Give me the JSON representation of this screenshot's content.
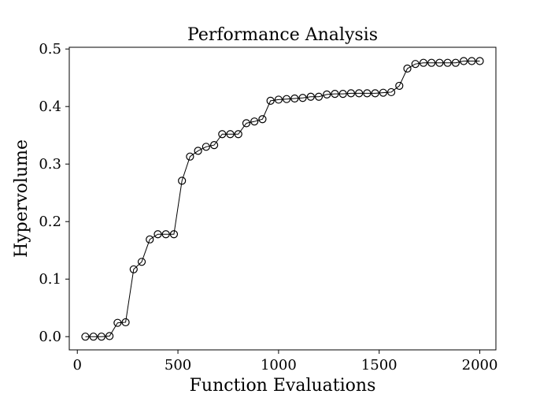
{
  "chart_data": {
    "type": "line",
    "title": "Performance Analysis",
    "xlabel": "Function Evaluations",
    "ylabel": "Hypervolume",
    "xlim": [
      -40,
      2080
    ],
    "ylim": [
      -0.023,
      0.503
    ],
    "xticks": [
      0,
      500,
      1000,
      1500,
      2000
    ],
    "yticks": [
      0.0,
      0.1,
      0.2,
      0.3,
      0.4,
      0.5
    ],
    "xtick_labels": [
      "0",
      "500",
      "1000",
      "1500",
      "2000"
    ],
    "ytick_labels": [
      "0.0",
      "0.1",
      "0.2",
      "0.3",
      "0.4",
      "0.5"
    ],
    "grid": false,
    "legend": "none",
    "line_color": "#000000",
    "marker": "open-circle",
    "series": [
      {
        "x": [
          40,
          80,
          120,
          160,
          200,
          240,
          280,
          320,
          360,
          400,
          440,
          480,
          520,
          560,
          600,
          640,
          680,
          720,
          760,
          800,
          840,
          880,
          920,
          960,
          1000,
          1040,
          1080,
          1120,
          1160,
          1200,
          1240,
          1280,
          1320,
          1360,
          1400,
          1440,
          1480,
          1520,
          1560,
          1600,
          1640,
          1680,
          1720,
          1760,
          1800,
          1840,
          1880,
          1920,
          1960,
          2000
        ],
        "values": [
          0.0,
          0.0,
          0.0,
          0.001,
          0.024,
          0.025,
          0.117,
          0.13,
          0.169,
          0.178,
          0.178,
          0.178,
          0.271,
          0.313,
          0.323,
          0.33,
          0.333,
          0.352,
          0.352,
          0.352,
          0.371,
          0.374,
          0.378,
          0.41,
          0.412,
          0.413,
          0.414,
          0.415,
          0.417,
          0.417,
          0.421,
          0.422,
          0.422,
          0.423,
          0.423,
          0.423,
          0.423,
          0.424,
          0.425,
          0.436,
          0.466,
          0.474,
          0.476,
          0.476,
          0.476,
          0.476,
          0.476,
          0.479,
          0.479,
          0.479
        ]
      }
    ]
  }
}
